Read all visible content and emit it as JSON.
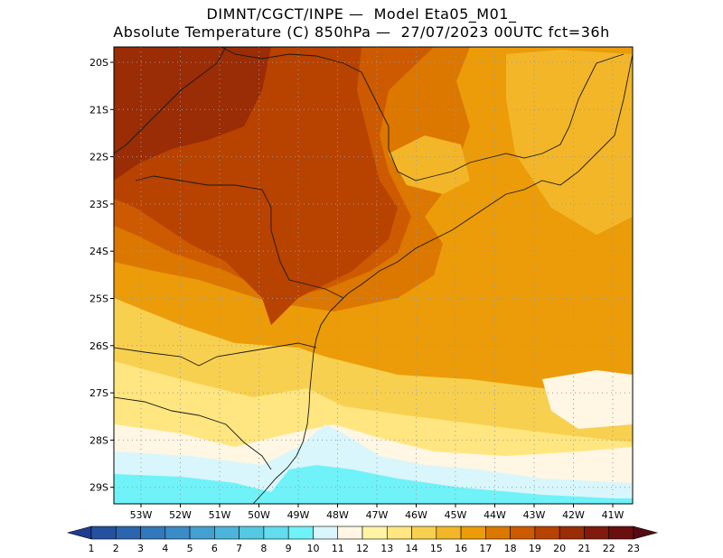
{
  "title": {
    "line1": "DIMNT/CGCT/INPE —  Model Eta05_M01_",
    "line2": "Absolute Temperature (C) 850hPa —  27/07/2023 00UTC fct=36h"
  },
  "axes": {
    "latitudes": [
      "20S",
      "21S",
      "22S",
      "23S",
      "24S",
      "25S",
      "26S",
      "27S",
      "28S",
      "29S"
    ],
    "longitudes": [
      "53W",
      "52W",
      "51W",
      "50W",
      "49W",
      "48W",
      "47W",
      "46W",
      "45W",
      "44W",
      "43W",
      "42W",
      "41W"
    ]
  },
  "colorbar": {
    "labels": [
      "1",
      "2",
      "3",
      "4",
      "5",
      "6",
      "7",
      "8",
      "9",
      "10",
      "11",
      "12",
      "13",
      "14",
      "15",
      "16",
      "17",
      "18",
      "19",
      "20",
      "21",
      "22",
      "23"
    ],
    "colors": [
      "#1f3d8f",
      "#24509e",
      "#2a65ad",
      "#3278bb",
      "#3a8bc6",
      "#43a0d0",
      "#4cb4da",
      "#55c8e3",
      "#62dcee",
      "#6ff2f8",
      "#d8f6fb",
      "#fff6e3",
      "#fff3a6",
      "#ffe680",
      "#f8d050",
      "#f3b628",
      "#eb9c08",
      "#dc7700",
      "#cd5a00",
      "#b84200",
      "#9a2c06",
      "#7f1a0c",
      "#6a0e10",
      "#560a14"
    ]
  },
  "fields": {
    "dark_red": "#9a2c06",
    "red": "#b84200",
    "orange_red": "#cd5a00",
    "orange": "#dc7700",
    "amber": "#eb9c08",
    "gold": "#f3b628",
    "yellow": "#f8d050",
    "light_yellow": "#ffe680",
    "pale_yellow": "#fff3a6",
    "cream": "#fff6e3",
    "pale_cyan": "#d8f6fb",
    "cyan": "#6ff2f8",
    "cyan_mid": "#62dcee"
  }
}
